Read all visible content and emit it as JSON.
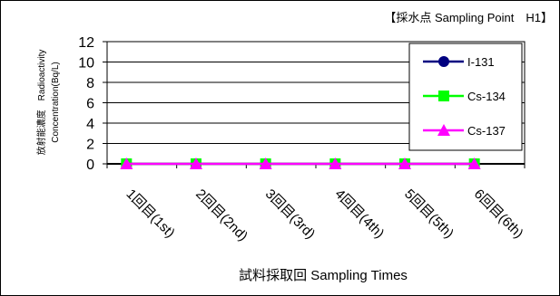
{
  "chart_data": {
    "type": "line",
    "title": "【採水点 Sampling Point　H1】",
    "xlabel": "試料採取回 Sampling Times",
    "ylabel": "放射能濃度　Radioactivity Concentration(Bq/L)",
    "ylabel_lines": [
      "放射能濃度　Radioactivity",
      "Concentration(Bq/L)"
    ],
    "categories": [
      "1回目(1st)",
      "2回目(2nd)",
      "3回目(3rd)",
      "4回目(4th)",
      "5回目(5th)",
      "6回目(6th)"
    ],
    "ylim": [
      0,
      12
    ],
    "yticks": [
      0,
      2,
      4,
      6,
      8,
      10,
      12
    ],
    "grid": true,
    "legend_position": "right",
    "series": [
      {
        "name": "I-131",
        "values": [
          0,
          0,
          0,
          0,
          0,
          0
        ],
        "color": "#000080",
        "marker": "circle"
      },
      {
        "name": "Cs-134",
        "values": [
          0,
          0,
          0,
          0,
          0,
          0
        ],
        "color": "#00ff00",
        "marker": "square"
      },
      {
        "name": "Cs-137",
        "values": [
          0,
          0,
          0,
          0,
          0,
          0
        ],
        "color": "#ff00ff",
        "marker": "triangle"
      }
    ]
  }
}
